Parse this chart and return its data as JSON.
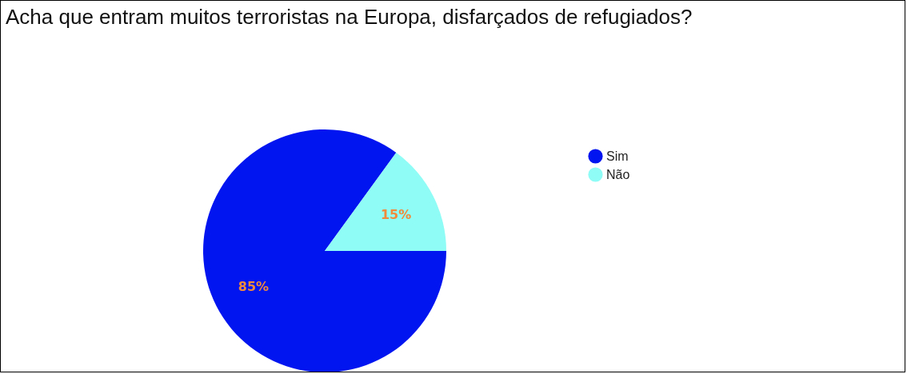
{
  "chart_data": {
    "type": "pie",
    "title": "Acha que entram muitos terroristas na Europa, disfarçados de refugiados?",
    "categories": [
      "Sim",
      "Não"
    ],
    "values": [
      85,
      15
    ],
    "colors": [
      "#0015f0",
      "#8ffcf5"
    ],
    "value_labels": [
      "85%",
      "15%"
    ],
    "legend": "top right"
  }
}
